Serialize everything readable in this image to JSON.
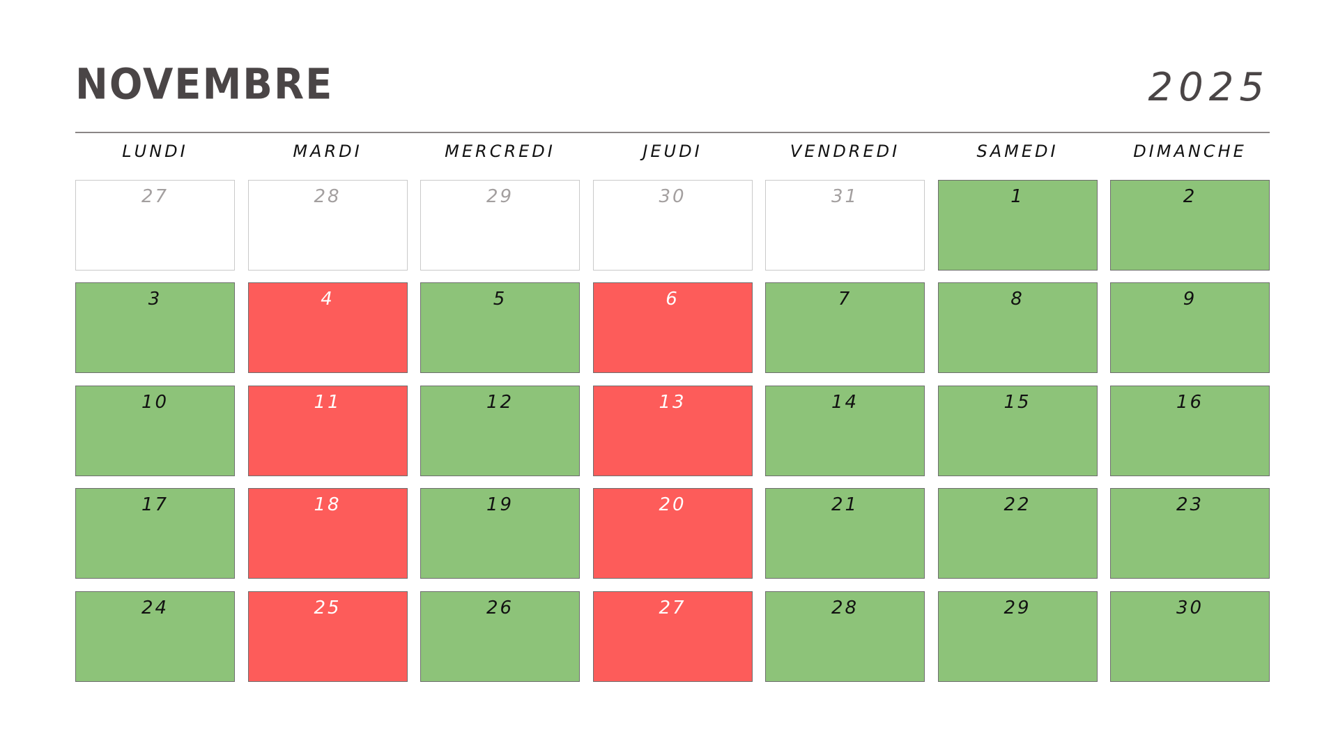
{
  "calendar": {
    "month": "NOVEMBRE",
    "year": "2025",
    "weekdays": [
      "LUNDI",
      "MARDI",
      "MERCREDI",
      "JEUDI",
      "VENDREDI",
      "SAMEDI",
      "DIMANCHE"
    ],
    "status_colors": {
      "green": "#8dc379",
      "red": "#fd5c5a",
      "out": "#ffffff"
    },
    "weeks": [
      [
        {
          "day": "27",
          "status": "out"
        },
        {
          "day": "28",
          "status": "out"
        },
        {
          "day": "29",
          "status": "out"
        },
        {
          "day": "30",
          "status": "out"
        },
        {
          "day": "31",
          "status": "out"
        },
        {
          "day": "1",
          "status": "green"
        },
        {
          "day": "2",
          "status": "green"
        }
      ],
      [
        {
          "day": "3",
          "status": "green"
        },
        {
          "day": "4",
          "status": "red"
        },
        {
          "day": "5",
          "status": "green"
        },
        {
          "day": "6",
          "status": "red"
        },
        {
          "day": "7",
          "status": "green"
        },
        {
          "day": "8",
          "status": "green"
        },
        {
          "day": "9",
          "status": "green"
        }
      ],
      [
        {
          "day": "10",
          "status": "green"
        },
        {
          "day": "11",
          "status": "red"
        },
        {
          "day": "12",
          "status": "green"
        },
        {
          "day": "13",
          "status": "red"
        },
        {
          "day": "14",
          "status": "green"
        },
        {
          "day": "15",
          "status": "green"
        },
        {
          "day": "16",
          "status": "green"
        }
      ],
      [
        {
          "day": "17",
          "status": "green"
        },
        {
          "day": "18",
          "status": "red"
        },
        {
          "day": "19",
          "status": "green"
        },
        {
          "day": "20",
          "status": "red"
        },
        {
          "day": "21",
          "status": "green"
        },
        {
          "day": "22",
          "status": "green"
        },
        {
          "day": "23",
          "status": "green"
        }
      ],
      [
        {
          "day": "24",
          "status": "green"
        },
        {
          "day": "25",
          "status": "red"
        },
        {
          "day": "26",
          "status": "green"
        },
        {
          "day": "27",
          "status": "red"
        },
        {
          "day": "28",
          "status": "green"
        },
        {
          "day": "29",
          "status": "green"
        },
        {
          "day": "30",
          "status": "green"
        }
      ]
    ]
  }
}
